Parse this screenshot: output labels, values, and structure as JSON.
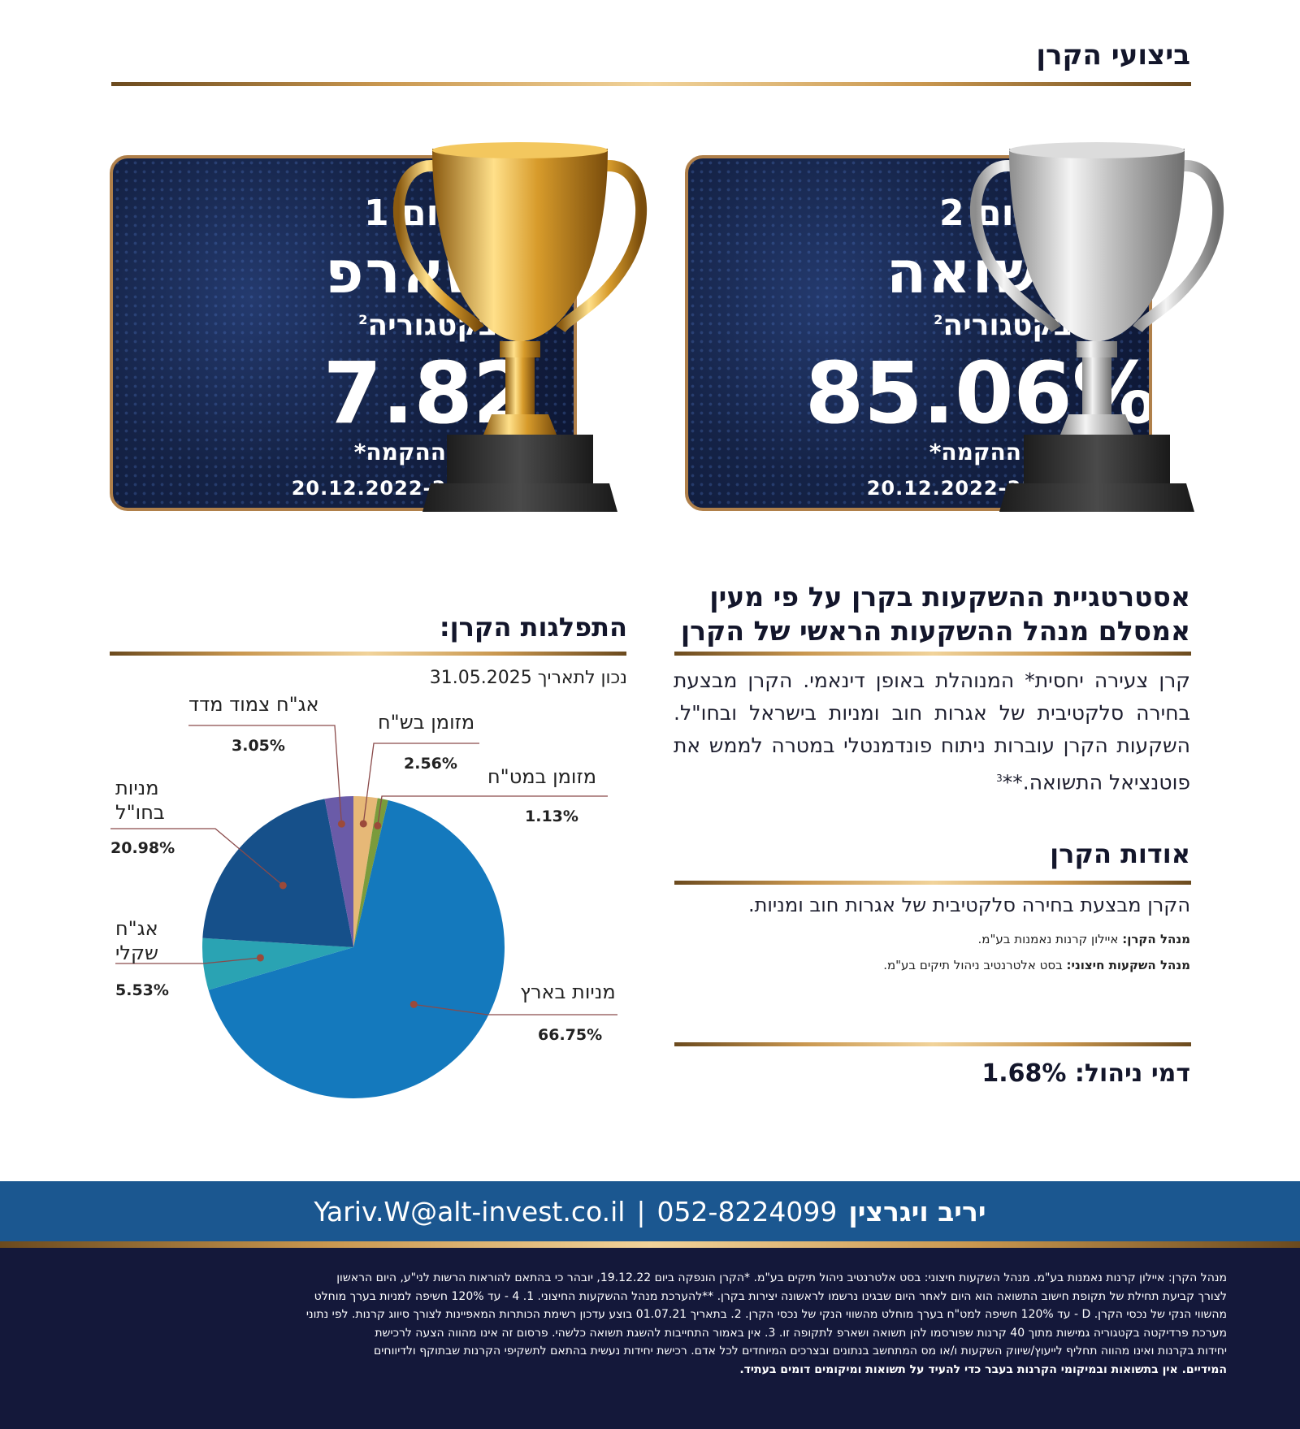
{
  "header": {
    "title": "ביצועי הקרן"
  },
  "awards": [
    {
      "place": "מקום 1",
      "category": "בשארפ",
      "sub": "בקטגוריה",
      "sup": "2",
      "value": "7.82",
      "since": "מיום ההקמה*",
      "dates": "20.12.2022-31.05.2025"
    },
    {
      "place": "מקום 2",
      "category": "בתשואה",
      "sub": "בקטגוריה",
      "sup": "2",
      "value": "85.06%",
      "since": "מיום ההקמה*",
      "dates": "20.12.2022-31.05.2025"
    }
  ],
  "strategy": {
    "title_line1": "אסטרטגיית ההשקעות בקרן על פי מעין",
    "title_line2": "אמסלם מנהל ההשקעות הראשי של הקרן",
    "body": "קרן צעירה יחסית* המנוהלת באופן דינאמי. הקרן מבצעת בחירה סלקטיבית של אגרות חוב ומניות בישראל ובחו\"ל. השקעות הקרן עוברות ניתוח פונדמנטלי במטרה לממש את פוטנציאל התשואה.**",
    "sup": "3"
  },
  "about": {
    "title": "אודות הקרן",
    "body": "הקרן מבצעת בחירה סלקטיבית של אגרות חוב ומניות.",
    "manager_label": "מנהל הקרן:",
    "manager_value": "איילון קרנות נאמנות בע\"מ.",
    "ext_label": "מנהל השקעות חיצוני:",
    "ext_value": "בסט אלטרנטיב ניהול תיקים בע\"מ."
  },
  "fees": {
    "label": "דמי ניהול:",
    "value": "1.68%"
  },
  "distribution": {
    "title": "התפלגות הקרן:",
    "date_label": "נכון לתאריך 31.05.2025"
  },
  "chart_data": {
    "type": "pie",
    "title": "",
    "slices": [
      {
        "label": "מניות בארץ",
        "value": 66.75,
        "display": "66.75%",
        "color": "#1479bd"
      },
      {
        "label": "אג\"ח שקלי",
        "value": 5.53,
        "display": "5.53%",
        "color": "#2aa3b3"
      },
      {
        "label": "מניות בחו\"ל",
        "value": 20.98,
        "display": "20.98%",
        "color": "#16508a"
      },
      {
        "label": "אג\"ח צמוד מדד",
        "value": 3.05,
        "display": "3.05%",
        "color": "#6a5ba8"
      },
      {
        "label": "מזומן בש\"ח",
        "value": 2.56,
        "display": "2.56%",
        "color": "#e6b877"
      },
      {
        "label": "מזומן במט\"ח",
        "value": 1.13,
        "display": "1.13%",
        "color": "#7a9b3c"
      }
    ],
    "label_lines": [
      [
        "מניות בארץ"
      ],
      [
        "אג\"ח",
        "שקלי"
      ],
      [
        "מניות",
        "בחו\"ל"
      ],
      [
        "אג\"ח צמוד מדד"
      ],
      [
        "מזומן בש\"ח"
      ],
      [
        "מזומן במט\"ח"
      ]
    ]
  },
  "contact": {
    "name": "יריב ויגרצין",
    "phone": "052-8224099",
    "separator": "|",
    "email": "Yariv.W@alt-invest.co.il"
  },
  "footer": {
    "lines": [
      "מנהל הקרן: איילון קרנות נאמנות בע\"מ. מנהל השקעות חיצוני: בסט אלטרנטיב ניהול תיקים בע\"מ. *הקרן הונפקה ביום 19.12.22, יובהר כי בהתאם להוראות הרשות לני\"ע, היום הראשון",
      "לצורך קביעת תחילת של תקופת חישוב התשואה הוא היום לאחר היום שבגינו נרשמו לראשונה יצירות בקרן. **להערכת מנהל ההשקעות החיצוני. 1. 4 - עד 120% חשיפה למניות בערך מוחלט",
      "מהשווי הנקי של נכסי הקרן. D - עד 120% חשיפה למט\"ח בערך מוחלט מהשווי הנקי של נכסי הקרן. 2. בתאריך 01.07.21 בוצע עדכון רשימת הכותרות המאפיינות לצורך סיווג קרנות. לפי נתוני",
      "מערכת פרדיקטה בקטגוריה גמישות מתוך 40 קרנות שפורסמו להן תשואה ושארפ לתקופה זו. 3. אין באמור התחייבות להשגת תשואה כלשהי. פרסום זה אינו מהווה הצעה לרכישת",
      "יחידות בקרנות ואינו מהווה תחליף לייעוץ/שיווק השקעות ו/או מס המתחשב בנתונים ובצרכים המיוחדים לכל אדם. רכישת יחידות נעשית בהתאם לתשקיפי הקרנות שבתוקף ולדיווחים",
      "המידיים. אין בתשואות ובמיקומי הקרנות בעבר כדי להעיד על תשואות ומיקומים דומים בעתיד."
    ]
  },
  "colors": {
    "navy": "#14183a",
    "blue_bar": "#1b5790",
    "gold": "#c9974f"
  }
}
